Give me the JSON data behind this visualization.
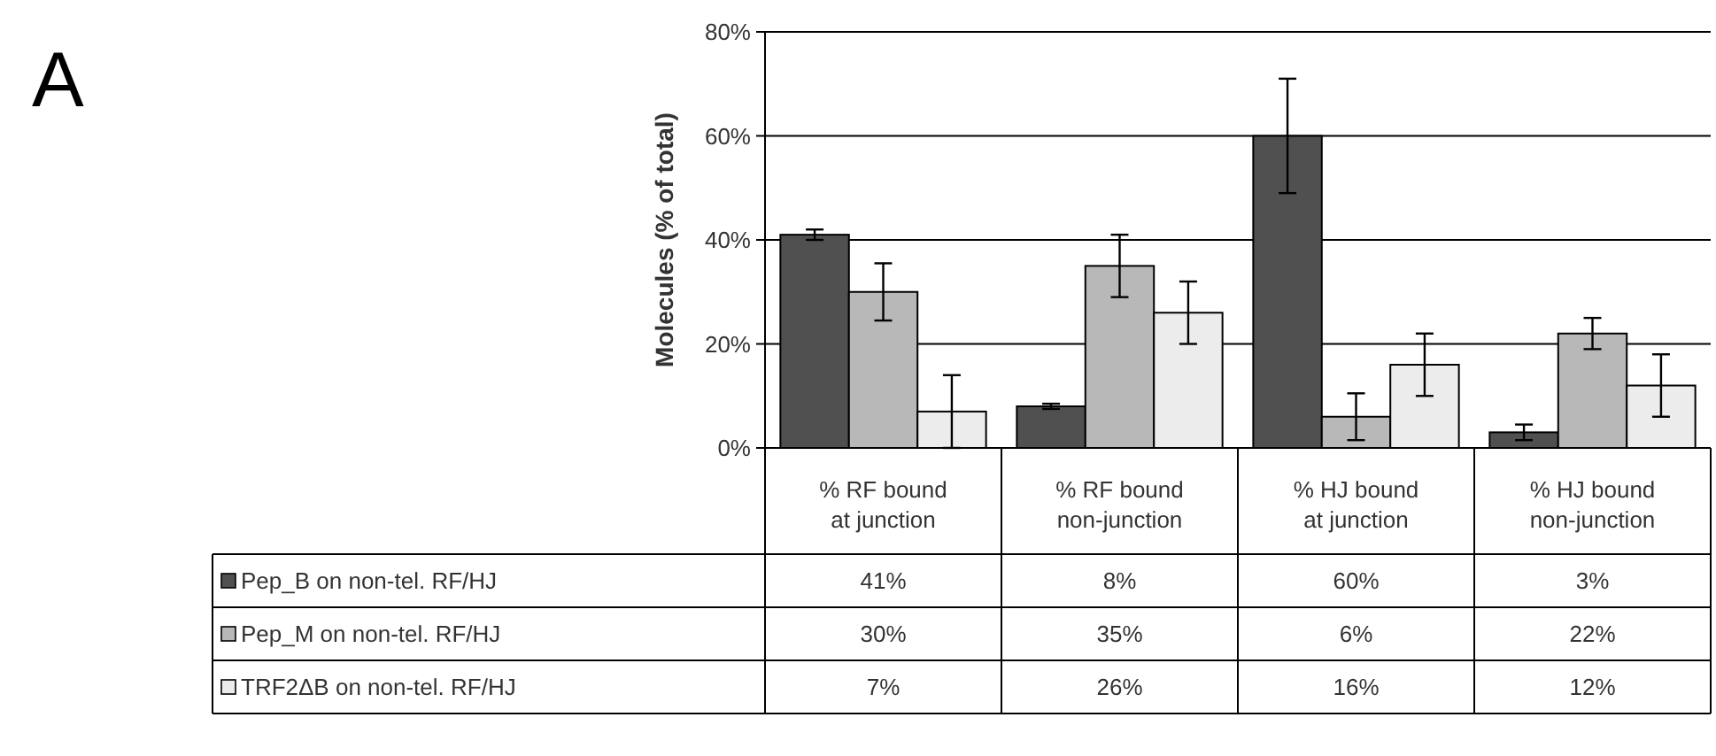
{
  "chart_data": {
    "type": "bar",
    "ylabel": "Molecules (% of total)",
    "annotations": [
      "A"
    ],
    "categories": [
      "% RF bound at junction",
      "% RF bound non-junction",
      "% HJ bound at junction",
      "% HJ bound non-junction"
    ],
    "ylim": [
      0,
      80
    ],
    "yticks": [
      {
        "value": 0,
        "label": "0%"
      },
      {
        "value": 20,
        "label": "20%"
      },
      {
        "value": 40,
        "label": "40%"
      },
      {
        "value": 60,
        "label": "60%"
      },
      {
        "value": 80,
        "label": "80%"
      }
    ],
    "grid": "y",
    "legend": "bottom left",
    "series": [
      {
        "name": "Pep_B on non-tel. RF/HJ",
        "color": "#505050",
        "values": [
          41,
          8,
          60,
          3
        ],
        "errors": [
          1,
          0.5,
          11,
          1.5
        ],
        "value_labels": [
          "41%",
          "8%",
          "60%",
          "3%"
        ]
      },
      {
        "name": "Pep_M on non-tel. RF/HJ",
        "color": "#b8b8b8",
        "values": [
          30,
          35,
          6,
          22
        ],
        "errors": [
          5.5,
          6,
          4.5,
          3
        ],
        "value_labels": [
          "30%",
          "35%",
          "6%",
          "22%"
        ]
      },
      {
        "name": "TRF2ΔB on non-tel. RF/HJ",
        "color": "#ececec",
        "values": [
          7,
          26,
          16,
          12
        ],
        "errors": [
          7,
          6,
          6,
          6
        ],
        "value_labels": [
          "7%",
          "26%",
          "16%",
          "12%"
        ]
      }
    ]
  }
}
